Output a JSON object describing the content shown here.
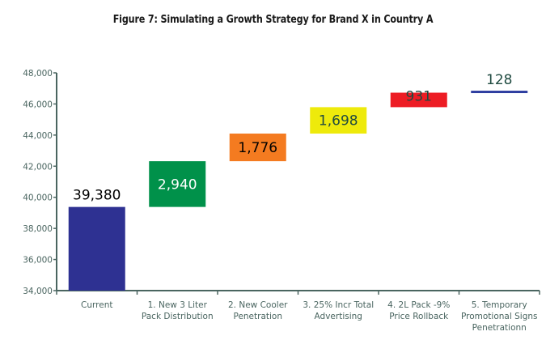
{
  "chart_data": {
    "type": "bar",
    "subtype": "waterfall",
    "title": "Figure 7: Simulating a Growth Strategy for Brand X in Country A",
    "xlabel": "",
    "ylabel": "",
    "ylim": [
      34000,
      48000
    ],
    "yticks": [
      34000,
      36000,
      38000,
      40000,
      42000,
      44000,
      46000,
      48000
    ],
    "ytick_labels": [
      "34,000",
      "36,000",
      "38,000",
      "40,000",
      "42,000",
      "44,000",
      "46,000",
      "48,000"
    ],
    "grid": false,
    "legend": "none",
    "categories": [
      [
        "Current"
      ],
      [
        "1. New 3 Liter",
        "Pack Distribution"
      ],
      [
        "2. New Cooler",
        "Penetration"
      ],
      [
        "3. 25% Incr Total",
        "Advertising"
      ],
      [
        "4. 2L Pack -9%",
        "Price Rollback"
      ],
      [
        "5. Temporary",
        "Promotional Signs",
        "Penetrationn"
      ]
    ],
    "values": [
      39380,
      2940,
      1776,
      1698,
      931,
      128
    ],
    "data_labels": [
      "39,380",
      "2,940",
      "1,776",
      "1,698",
      "931",
      "128"
    ],
    "colors": [
      "#2e3192",
      "#00914a",
      "#f47b20",
      "#eeea0b",
      "#ed1c24",
      "#2e3ea0"
    ],
    "label_colors": [
      "#000000",
      "#ffffff",
      "#000000",
      "#1f4a40",
      "#1f4a40",
      "#1f4a40"
    ],
    "axis_color": "#4a6560"
  },
  "figure": {
    "title": "Figure 7: Simulating a Growth Strategy for Brand X in Country A"
  }
}
